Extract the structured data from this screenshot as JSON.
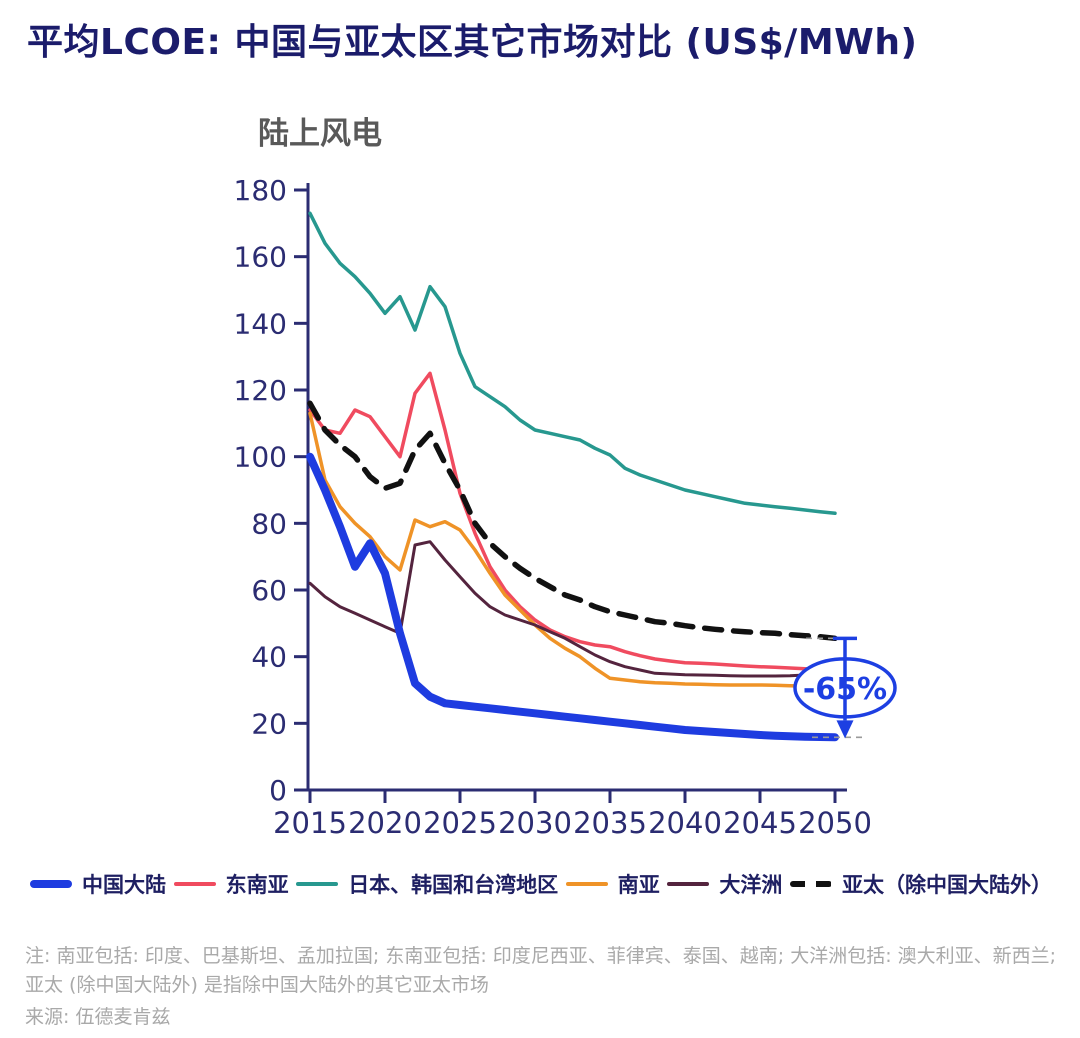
{
  "page": {
    "title": "平均LCOE: 中国与亚太区其它市场对比 (US$/MWh)"
  },
  "chart": {
    "subtitle": "陆上风电",
    "annotation": {
      "label": "-65%",
      "at_x": 2050
    }
  },
  "colors": {
    "title": "#1b1c6b",
    "axis": "#2b2c72",
    "subtitle": "#595959",
    "notes": "#a9a9a9",
    "annotation": "#1d3fe2"
  },
  "chart_data": {
    "type": "line",
    "title": "陆上风电",
    "unit": "US$/MWh",
    "xlabel": "",
    "ylabel": "",
    "ylim": [
      0,
      180
    ],
    "grid": false,
    "legend_position": "bottom",
    "x": [
      2015,
      2016,
      2017,
      2018,
      2019,
      2020,
      2021,
      2022,
      2023,
      2024,
      2025,
      2026,
      2027,
      2028,
      2029,
      2030,
      2031,
      2032,
      2033,
      2034,
      2035,
      2036,
      2037,
      2038,
      2039,
      2040,
      2041,
      2042,
      2043,
      2044,
      2045,
      2046,
      2047,
      2048,
      2049,
      2050
    ],
    "x_ticks": [
      2015,
      2020,
      2025,
      2030,
      2035,
      2040,
      2045,
      2050
    ],
    "y_ticks": [
      0,
      20,
      40,
      60,
      80,
      100,
      120,
      140,
      160,
      180
    ],
    "series": [
      {
        "name": "中国大陆",
        "color": "#1e3ce0",
        "width": 8,
        "dash": null,
        "values": [
          100,
          90,
          79,
          67,
          74,
          65,
          47,
          32,
          28,
          26,
          25.5,
          25,
          24.5,
          24,
          23.5,
          23,
          22.5,
          22,
          21.5,
          21,
          20.5,
          20,
          19.5,
          19,
          18.5,
          18,
          17.7,
          17.4,
          17.1,
          16.8,
          16.5,
          16.3,
          16.1,
          16,
          15.9,
          15.8
        ]
      },
      {
        "name": "东南亚",
        "color": "#f04b5f",
        "width": 3.5,
        "dash": null,
        "values": [
          114,
          108,
          107,
          114,
          112,
          106,
          100,
          119,
          125,
          108,
          89,
          77,
          67,
          60,
          55,
          51,
          48,
          46,
          44.5,
          43.5,
          43,
          41.5,
          40.3,
          39.3,
          38.7,
          38.2,
          38,
          37.8,
          37.5,
          37.2,
          37,
          36.8,
          36.6,
          36.4,
          36.2,
          36
        ]
      },
      {
        "name": "日本、韩国和台湾地区",
        "color": "#27988f",
        "width": 3.5,
        "dash": null,
        "values": [
          173,
          164,
          158,
          154,
          149,
          143,
          148,
          138,
          151,
          145,
          131,
          121,
          118,
          115,
          111,
          108,
          107,
          106,
          105,
          102.5,
          100.5,
          96.5,
          94.5,
          93,
          91.5,
          90,
          89,
          88,
          87,
          86,
          85.5,
          85,
          84.5,
          84,
          83.5,
          83
        ]
      },
      {
        "name": "南亚",
        "color": "#ef9327",
        "width": 3.5,
        "dash": null,
        "values": [
          113,
          93,
          85,
          80,
          76,
          70,
          66,
          81,
          79,
          80.5,
          78,
          72,
          65,
          58.5,
          54,
          49.5,
          45.5,
          42.5,
          40,
          36.5,
          33.5,
          33,
          32.5,
          32.2,
          32,
          31.8,
          31.7,
          31.6,
          31.5,
          31.5,
          31.5,
          31.4,
          31.3,
          31.2,
          31.1,
          31
        ]
      },
      {
        "name": "大洋洲",
        "color": "#54243e",
        "width": 3,
        "dash": null,
        "values": [
          62,
          58,
          55,
          53,
          51,
          49,
          47,
          73.5,
          74.5,
          69,
          64,
          59,
          55,
          52.5,
          51,
          49.5,
          47.5,
          45.5,
          43,
          40.5,
          38.5,
          37,
          36,
          35,
          34.8,
          34.6,
          34.5,
          34.4,
          34.3,
          34.2,
          34.2,
          34.2,
          34.3,
          34.5,
          34.7,
          35
        ]
      },
      {
        "name": "亚太（除中国大陆外）",
        "color": "#111111",
        "width": 5.5,
        "dash": "17 12",
        "values": [
          116,
          108,
          103.5,
          100,
          94,
          90.5,
          92,
          102,
          107,
          98,
          90,
          80,
          74,
          70,
          66.5,
          63.5,
          61,
          58.5,
          57,
          55,
          53.5,
          52.5,
          51.5,
          50.5,
          50,
          49.3,
          48.7,
          48.2,
          47.8,
          47.5,
          47.2,
          47,
          46.6,
          46.3,
          46,
          45.5
        ]
      }
    ]
  },
  "notes": {
    "note": "注: 南亚包括: 印度、巴基斯坦、孟加拉国; 东南亚包括: 印度尼西亚、菲律宾、泰国、越南; 大洋洲包括: 澳大利亚、新西兰; 亚太 (除中国大陆外) 是指除中国大陆外的其它亚太市场",
    "source": "来源: 伍德麦肯兹"
  }
}
